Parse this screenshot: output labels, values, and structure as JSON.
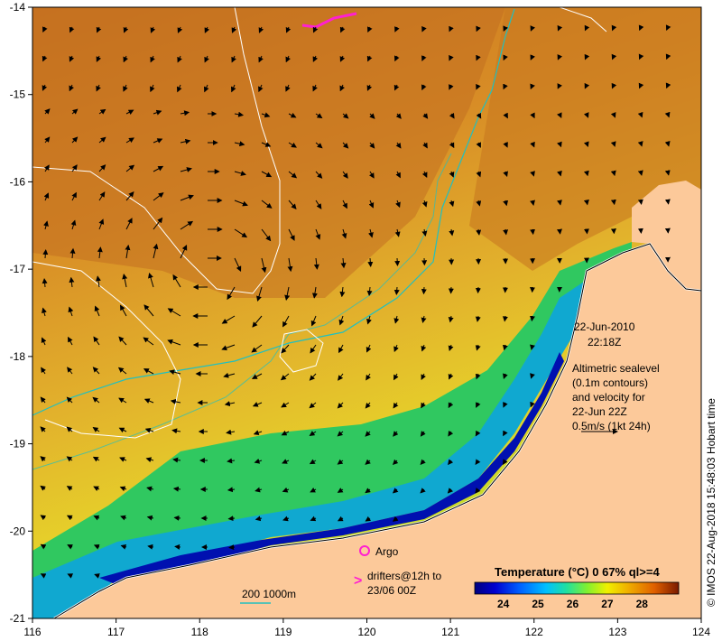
{
  "map": {
    "x_ticks": [
      "116",
      "117",
      "118",
      "119",
      "120",
      "121",
      "122",
      "123",
      "124"
    ],
    "y_ticks": [
      "-14",
      "-15",
      "-16",
      "-17",
      "-18",
      "-19",
      "-20",
      "-21"
    ],
    "lon_range": [
      116,
      124
    ],
    "lat_range": [
      -21,
      -14
    ]
  },
  "date_text": "22-Jun-2010",
  "time_text": "22:18Z",
  "altimetry_note": [
    "Altimetric sealevel",
    "(0.1m contours)",
    "and velocity for",
    "22-Jun 22Z",
    "0.5m/s (1kt 24h)"
  ],
  "argo_label": "Argo",
  "drifter_label_1": "drifters@12h to",
  "drifter_label_2": "23/06 00Z",
  "depth_label": "200  1000m",
  "colorbar": {
    "title": "Temperature (°C) 0 67% ql>=4",
    "ticks": [
      "24",
      "25",
      "26",
      "27",
      "28"
    ],
    "colors": [
      "#00007f",
      "#0000c8",
      "#0050ff",
      "#00a0ff",
      "#00e0d0",
      "#30e070",
      "#a0f020",
      "#f0f000",
      "#f0b000",
      "#e07000",
      "#b03000",
      "#7a1a00"
    ]
  },
  "credit": "© IMOS 22-Aug-2018 15:48:03 Hobart time",
  "colors": {
    "land": "#fcc99a",
    "ocean_warm": "#d88a2a",
    "ocean_mid": "#e8c030",
    "isobath": "#20c0c0"
  }
}
